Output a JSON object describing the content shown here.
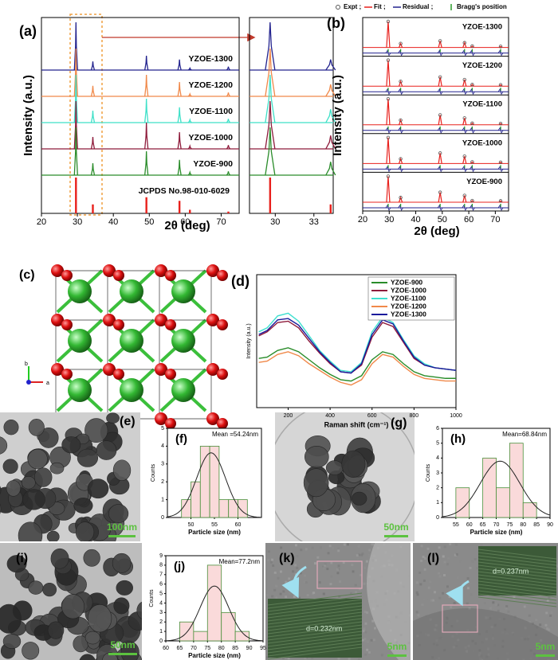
{
  "chart_data": [
    {
      "type": "xrd",
      "panel_label": "(a)",
      "xlabel": "2θ (deg)",
      "ylabel": "Intensity (a.u.)",
      "xlim": [
        20,
        75
      ],
      "xticks": [
        20,
        30,
        40,
        50,
        60,
        70
      ],
      "ylim": [
        0,
        100
      ],
      "x": [
        29.6,
        34.3,
        49.2,
        58.4,
        61.3,
        72.0
      ],
      "series": [
        {
          "name": "YZOE-1300",
          "color": "#23238e",
          "values": [
            100,
            18,
            30,
            22,
            4,
            7
          ]
        },
        {
          "name": "YZOE-1200",
          "color": "#f0894a",
          "values": [
            100,
            22,
            45,
            30,
            5,
            8
          ]
        },
        {
          "name": "YZOE-1100",
          "color": "#3fe0c8",
          "values": [
            100,
            25,
            50,
            32,
            6,
            8
          ]
        },
        {
          "name": "YZOE-1000",
          "color": "#8e1b3b",
          "values": [
            100,
            25,
            55,
            35,
            6,
            8
          ]
        },
        {
          "name": "YZOE-900",
          "color": "#2a8c2a",
          "values": [
            100,
            25,
            50,
            32,
            6,
            8
          ]
        }
      ],
      "reference": {
        "name": "JCPDS No.98-010-6029",
        "color": "#e8201c",
        "values": [
          100,
          25,
          45,
          35,
          10,
          5
        ]
      }
    },
    {
      "type": "xrd",
      "xlim": [
        28,
        34.5
      ],
      "xticks": [
        30,
        33
      ],
      "ylim": [
        0,
        100
      ],
      "x": [
        29.6,
        34.3
      ],
      "series": [
        {
          "color": "#23238e",
          "values": [
            100,
            22
          ]
        },
        {
          "color": "#f0894a",
          "values": [
            100,
            25
          ]
        },
        {
          "color": "#3fe0c8",
          "values": [
            100,
            28
          ]
        },
        {
          "color": "#8e1b3b",
          "values": [
            100,
            28
          ]
        },
        {
          "color": "#2a8c2a",
          "values": [
            100,
            28
          ]
        }
      ],
      "reference": {
        "color": "#e8201c",
        "values": [
          100,
          25
        ]
      }
    },
    {
      "type": "rietveld",
      "panel_label": "(b)",
      "xlabel": "2θ (deg)",
      "ylabel": "Intensity (a.u.)",
      "xlim": [
        20,
        75
      ],
      "xticks": [
        20,
        30,
        40,
        50,
        60,
        70
      ],
      "ylim": [
        0,
        100
      ],
      "x": [
        29.6,
        34.3,
        49.2,
        58.4,
        61.3,
        72.0
      ],
      "legend": [
        {
          "name": "Expt ;",
          "color": "#555555"
        },
        {
          "name": "Fit ;",
          "color": "#e8201c"
        },
        {
          "name": "Residual ;",
          "color": "#23238e"
        },
        {
          "name": "Bragg's position",
          "color": "#2a9c2a"
        }
      ],
      "series": [
        {
          "name": "YZOE-1300",
          "values": [
            100,
            15,
            25,
            18,
            5,
            4
          ]
        },
        {
          "name": "YZOE-1200",
          "values": [
            100,
            18,
            35,
            25,
            6,
            5
          ]
        },
        {
          "name": "YZOE-1100",
          "values": [
            100,
            18,
            38,
            26,
            6,
            5
          ]
        },
        {
          "name": "YZOE-1000",
          "values": [
            100,
            18,
            40,
            28,
            6,
            5
          ]
        },
        {
          "name": "YZOE-900",
          "values": [
            100,
            18,
            38,
            26,
            6,
            5
          ]
        }
      ]
    },
    {
      "type": "line",
      "panel_label": "(d)",
      "xlabel": "Raman shift (cm⁻¹)",
      "ylabel": "Intensity (a.u.)",
      "xlim": [
        50,
        1000
      ],
      "xticks": [
        200,
        400,
        600,
        800,
        1000
      ],
      "ylim": [
        0,
        100
      ],
      "x": [
        60,
        100,
        150,
        200,
        250,
        300,
        350,
        400,
        450,
        500,
        550,
        600,
        650,
        700,
        750,
        800,
        850,
        900,
        950,
        1000
      ],
      "series": [
        {
          "name": "YZOE-900",
          "color": "#2a8c2a",
          "values": [
            37,
            38,
            43,
            45,
            42,
            36,
            30,
            25,
            21,
            20,
            24,
            36,
            42,
            40,
            33,
            27,
            24,
            23,
            22,
            22
          ]
        },
        {
          "name": "YZOE-1000",
          "color": "#8e1b3b",
          "values": [
            54,
            57,
            64,
            65,
            60,
            50,
            41,
            33,
            27,
            26,
            32,
            53,
            64,
            61,
            49,
            37,
            32,
            30,
            29,
            28
          ]
        },
        {
          "name": "YZOE-1100",
          "color": "#3fe0d0",
          "values": [
            57,
            60,
            69,
            71,
            65,
            54,
            43,
            35,
            28,
            27,
            34,
            57,
            68,
            64,
            51,
            39,
            33,
            30,
            29,
            28
          ]
        },
        {
          "name": "YZOE-1200",
          "color": "#f0894a",
          "values": [
            34,
            35,
            40,
            42,
            39,
            33,
            28,
            23,
            19,
            17,
            21,
            33,
            40,
            38,
            31,
            25,
            22,
            21,
            20,
            20
          ]
        },
        {
          "name": "YZOE-1300",
          "color": "#1a1a9c",
          "values": [
            55,
            58,
            66,
            67,
            62,
            52,
            42,
            34,
            27,
            26,
            33,
            55,
            66,
            63,
            50,
            38,
            32,
            30,
            29,
            28
          ]
        }
      ]
    },
    {
      "type": "histogram",
      "panel_label": "(f)",
      "annotation": "Mean =54.24nm",
      "xlabel": "Particle size (nm)",
      "ylabel": "Counts",
      "bins": [
        48,
        50,
        52,
        54,
        56,
        58,
        60,
        62
      ],
      "counts": [
        1,
        2,
        4,
        4,
        1,
        1,
        1
      ],
      "xlim": [
        45,
        65
      ],
      "xticks": [
        50,
        55,
        60
      ],
      "ylim": [
        0,
        5
      ],
      "yticks": [
        0,
        1,
        2,
        3,
        4,
        5
      ]
    },
    {
      "type": "histogram",
      "panel_label": "(h)",
      "annotation": "Mean=68.84nm",
      "xlabel": "Particle size (nm)",
      "ylabel": "Counts",
      "bins": [
        55,
        60,
        65,
        70,
        75,
        80,
        85
      ],
      "counts": [
        2,
        0,
        4,
        2,
        5,
        1
      ],
      "xlim": [
        50,
        90
      ],
      "xticks": [
        55,
        60,
        65,
        70,
        75,
        80,
        85,
        90
      ],
      "ylim": [
        0,
        6
      ],
      "yticks": [
        0,
        1,
        2,
        3,
        4,
        5,
        6
      ]
    },
    {
      "type": "histogram",
      "panel_label": "(j)",
      "annotation": "Mean=77.2nm",
      "xlabel": "Particle size (nm)",
      "ylabel": "Counts",
      "bins": [
        65,
        70,
        75,
        80,
        85,
        90
      ],
      "counts": [
        2,
        1,
        8,
        3,
        1
      ],
      "xlim": [
        60,
        95
      ],
      "xticks": [
        60,
        65,
        70,
        75,
        80,
        85,
        90,
        95
      ],
      "ylim": [
        0,
        9
      ],
      "yticks": [
        0,
        1,
        2,
        3,
        4,
        5,
        6,
        7,
        8,
        9
      ]
    }
  ],
  "images": {
    "c": {
      "label": "(c)",
      "axis_b": "b",
      "axis_a": "a"
    },
    "e": {
      "label": "(e)",
      "scale": "100nm"
    },
    "g": {
      "label": "(g)",
      "scale": "50nm"
    },
    "i": {
      "label": "(i)",
      "scale": "50nm"
    },
    "k": {
      "label": "(k)",
      "scale": "5nm",
      "annotation": "d=0.232nm"
    },
    "l": {
      "label": "(l)",
      "scale": "5nm",
      "annotation": "d=0.237nm"
    }
  }
}
